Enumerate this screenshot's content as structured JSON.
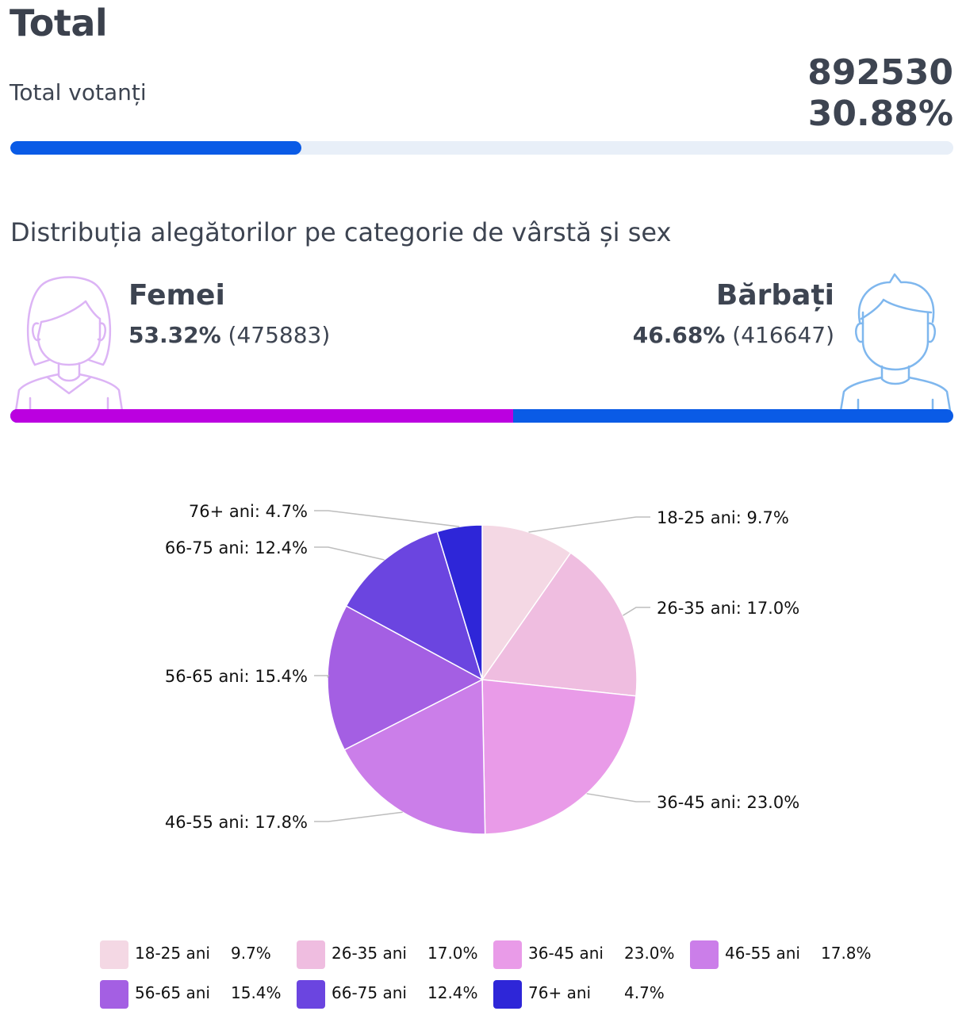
{
  "total": {
    "title": "Total",
    "label": "Total votanți",
    "count": "892530",
    "percent": "30.88%",
    "turnout_fraction": 0.3088
  },
  "distribution": {
    "title": "Distribuția alegătorilor pe categorie de vârstă și sex",
    "women": {
      "label": "Femei",
      "percent": "53.32%",
      "count": "(475883)",
      "share": 0.5332,
      "color": "#bb00e0",
      "avatar_icon": "woman-avatar-icon"
    },
    "men": {
      "label": "Bărbați",
      "percent": "46.68%",
      "count": "(416647)",
      "share": 0.4668,
      "color": "#0a5be6",
      "avatar_icon": "man-avatar-icon"
    }
  },
  "chart_data": {
    "type": "pie",
    "title": "",
    "legend_placement": "bottom",
    "slices": [
      {
        "name": "18-25 ani",
        "value": 9.7,
        "label": "18-25 ani: 9.7%",
        "legend_value": "9.7%",
        "color": "#f4d8e4"
      },
      {
        "name": "26-35 ani",
        "value": 17.0,
        "label": "26-35 ani: 17.0%",
        "legend_value": "17.0%",
        "color": "#efbde0"
      },
      {
        "name": "36-45 ani",
        "value": 23.0,
        "label": "36-45 ani: 23.0%",
        "legend_value": "23.0%",
        "color": "#e99be8"
      },
      {
        "name": "46-55 ani",
        "value": 17.8,
        "label": "46-55 ani: 17.8%",
        "legend_value": "17.8%",
        "color": "#cb7ee9"
      },
      {
        "name": "56-65 ani",
        "value": 15.4,
        "label": "56-65 ani: 15.4%",
        "legend_value": "15.4%",
        "color": "#a45fe3"
      },
      {
        "name": "66-75 ani",
        "value": 12.4,
        "label": "66-75 ani: 12.4%",
        "legend_value": "12.4%",
        "color": "#6b45e0"
      },
      {
        "name": "76+ ani",
        "value": 4.7,
        "label": "76+ ani: 4.7%",
        "legend_value": "4.7%",
        "color": "#2e26d8"
      }
    ]
  }
}
